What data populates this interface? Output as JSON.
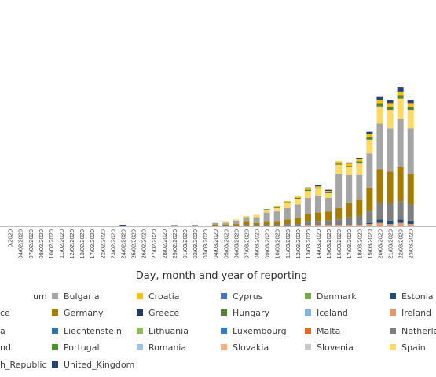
{
  "chart_data": {
    "type": "bar",
    "stacked": true,
    "xlabel": "Day, month and year of reporting",
    "categories": [
      "04/02/2020",
      "07/02/2020",
      "08/02/2020",
      "10/02/2020",
      "11/02/2020",
      "12/02/2020",
      "13/02/2020",
      "17/02/2020",
      "22/02/2020",
      "23/02/2020",
      "24/02/2020",
      "25/02/2020",
      "26/02/2020",
      "27/02/2020",
      "28/02/2020",
      "29/02/2020",
      "01/03/2020",
      "02/03/2020",
      "03/03/2020",
      "04/03/2020",
      "05/03/2020",
      "06/03/2020",
      "07/03/2020",
      "08/03/2020",
      "09/03/2020",
      "10/03/2020",
      "11/03/2020",
      "12/03/2020",
      "13/03/2020",
      "14/03/2020",
      "15/03/2020",
      "16/03/2020",
      "17/03/2020",
      "18/03/2020",
      "19/03/2020",
      "20/03/2020",
      "21/03/2020",
      "22/03/2020",
      "23/03/2020"
    ],
    "first_category_partial": "0/2020",
    "series": [
      {
        "name": "Ireland",
        "color": "#e8956b",
        "values": [
          0,
          0,
          0,
          0,
          0,
          0,
          0,
          0,
          0,
          0,
          0,
          0,
          0,
          0,
          0,
          0,
          0,
          0,
          0,
          0,
          0,
          0,
          0,
          0,
          0,
          0,
          0,
          0,
          1,
          1,
          1,
          1,
          1,
          1,
          2,
          3,
          2,
          3,
          2
        ]
      },
      {
        "name": "Estonia",
        "color": "#1f4e79",
        "values": [
          0,
          0,
          0,
          0,
          0,
          0,
          0,
          0,
          0,
          0,
          0,
          0,
          0,
          0,
          0,
          0,
          0,
          0,
          0,
          0,
          0,
          0,
          0,
          0,
          0,
          0,
          0,
          0,
          0,
          0,
          0,
          0,
          0,
          0,
          1,
          3,
          3,
          3,
          3
        ]
      },
      {
        "name": "Netherlands",
        "color": "#7f7f7f",
        "values": [
          0,
          0,
          0,
          0,
          0,
          0,
          0,
          0,
          0,
          0,
          0,
          0,
          0,
          0,
          0,
          0,
          0,
          0,
          0,
          0,
          0,
          0,
          1,
          1,
          1,
          1,
          2,
          2,
          3,
          3,
          4,
          5,
          7,
          8,
          10,
          14,
          15,
          16,
          14
        ]
      },
      {
        "name": "Germany",
        "color": "#a67c00",
        "values": [
          0,
          0,
          0,
          0,
          0,
          0,
          0,
          0,
          0,
          0,
          0,
          0,
          0,
          0,
          0,
          0,
          0,
          0,
          0,
          1,
          1,
          2,
          3,
          2,
          3,
          3,
          4,
          5,
          7,
          8,
          8,
          10,
          12,
          14,
          21,
          30,
          28,
          30,
          27
        ]
      },
      {
        "name": "Bulgaria",
        "color": "#a5a5a5",
        "values": [
          0,
          0,
          0,
          0,
          0,
          0,
          0,
          0,
          0,
          0,
          0,
          0,
          0,
          0,
          0,
          1,
          0,
          1,
          0,
          2,
          2,
          3,
          4,
          5,
          8,
          9,
          10,
          12,
          14,
          15,
          12,
          30,
          25,
          22,
          30,
          40,
          38,
          42,
          40
        ]
      },
      {
        "name": "Spain",
        "color": "#ffd966",
        "values": [
          0,
          0,
          0,
          0,
          0,
          0,
          0,
          0,
          0,
          0,
          0,
          0,
          0,
          0,
          0,
          0,
          0,
          0,
          0,
          0,
          1,
          1,
          1,
          2,
          2,
          3,
          4,
          5,
          6,
          6,
          4,
          8,
          7,
          10,
          12,
          15,
          16,
          18,
          16
        ]
      },
      {
        "name": "Hungary",
        "color": "#548235",
        "values": [
          0,
          0,
          0,
          0,
          0,
          0,
          0,
          0,
          0,
          0,
          0,
          0,
          0,
          0,
          0,
          0,
          0,
          0,
          0,
          0,
          0,
          0,
          0,
          0,
          1,
          1,
          1,
          1,
          1,
          1,
          1,
          1,
          1,
          2,
          2,
          3,
          3,
          3,
          3
        ]
      },
      {
        "name": "Croatia",
        "color": "#ffc000",
        "values": [
          0,
          0,
          0,
          0,
          0,
          0,
          0,
          0,
          0,
          0,
          0,
          0,
          0,
          0,
          0,
          0,
          0,
          0,
          0,
          0,
          0,
          0,
          0,
          0,
          0,
          1,
          1,
          1,
          1,
          1,
          1,
          2,
          2,
          2,
          3,
          3,
          3,
          3,
          3
        ]
      },
      {
        "name": "United_Kingdom",
        "color": "#264478",
        "values": [
          0,
          0,
          0,
          0,
          0,
          0,
          0,
          0,
          0,
          0,
          1,
          0,
          0,
          0,
          0,
          0,
          0,
          0,
          0,
          0,
          0,
          0,
          0,
          0,
          0,
          0,
          0,
          0,
          1,
          1,
          1,
          0,
          1,
          1,
          2,
          3,
          3,
          4,
          3
        ]
      }
    ],
    "legend": [
      {
        "label": "um",
        "color": "#264478"
      },
      {
        "label": "Bulgaria",
        "color": "#a5a5a5"
      },
      {
        "label": "Croatia",
        "color": "#ffc000"
      },
      {
        "label": "Cyprus",
        "color": "#4472c4"
      },
      {
        "label": "Denmark",
        "color": "#70ad47"
      },
      {
        "label": "Estonia",
        "color": "#1f4e79"
      },
      {
        "label": "ce",
        "color": "#5b9bd5"
      },
      {
        "label": "Germany",
        "color": "#a67c00"
      },
      {
        "label": "Greece",
        "color": "#203864"
      },
      {
        "label": "Hungary",
        "color": "#548235"
      },
      {
        "label": "Iceland",
        "color": "#7fb2e5"
      },
      {
        "label": "Ireland",
        "color": "#e8956b"
      },
      {
        "label": "a",
        "color": "#ed7d31"
      },
      {
        "label": "Liechtenstein",
        "color": "#2e75b6"
      },
      {
        "label": "Lithuania",
        "color": "#8fbc5a"
      },
      {
        "label": "Luxembourg",
        "color": "#2f7cc9"
      },
      {
        "label": "Malta",
        "color": "#e06a2b"
      },
      {
        "label": "Netherla",
        "color": "#7f7f7f"
      },
      {
        "label": "nd",
        "color": "#c9a227"
      },
      {
        "label": "Portugal",
        "color": "#4e8f2e"
      },
      {
        "label": "Romania",
        "color": "#9dc3e6"
      },
      {
        "label": "Slovakia",
        "color": "#f4b183"
      },
      {
        "label": "Slovenia",
        "color": "#c9c9c9"
      },
      {
        "label": "Spain",
        "color": "#ffd966"
      },
      {
        "label": "h_Republic",
        "color": "#f2d27a"
      },
      {
        "label": "United_Kingdom",
        "color": "#264478"
      }
    ]
  }
}
